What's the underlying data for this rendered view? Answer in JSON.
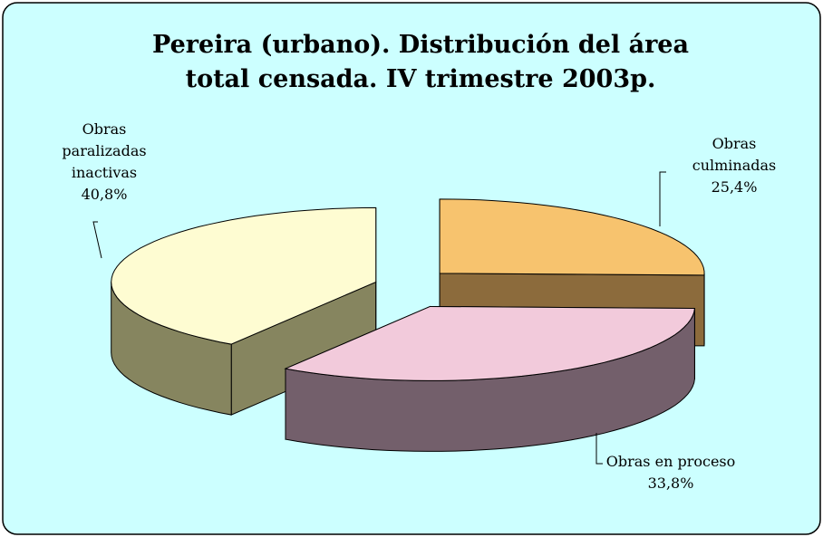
{
  "chart_data": {
    "type": "pie",
    "title": "Pereira (urbano). Distribución del área total censada. IV trimestre 2003p.",
    "categories": [
      "Obras culminadas",
      "Obras en proceso",
      "Obras paralizadas inactivas"
    ],
    "values": [
      25.4,
      33.8,
      40.8
    ],
    "value_labels": [
      "25,4%",
      "33,8%",
      "40,8%"
    ],
    "colors": [
      "#f7c36e",
      "#f2cadb",
      "#fefcd2"
    ],
    "side_colors": [
      "#8c6b3c",
      "#735f6b",
      "#86855f"
    ]
  }
}
